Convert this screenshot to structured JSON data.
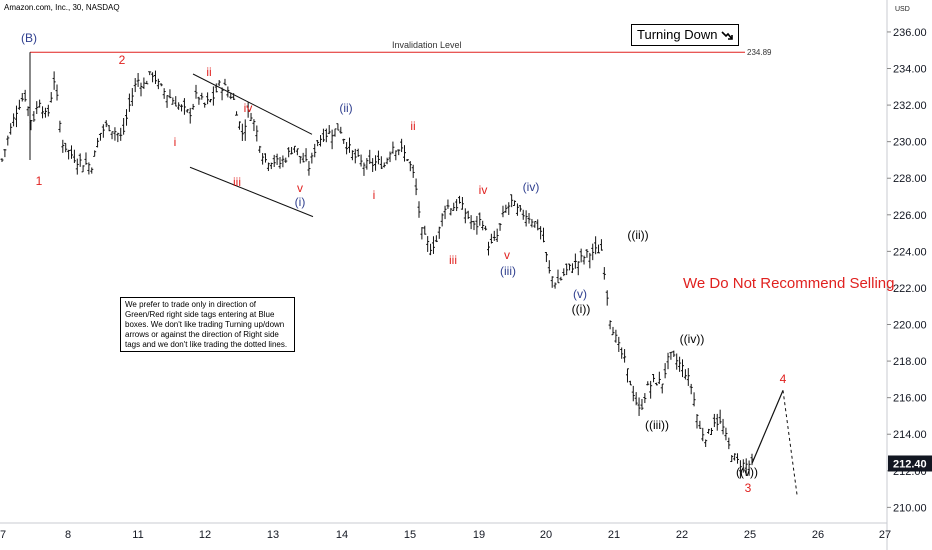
{
  "header": {
    "symbol": "Amazon.com, Inc., 30, NASDAQ",
    "currency": "USD"
  },
  "chart_data": {
    "type": "ohlc",
    "y_axis": {
      "range": [
        209.2,
        237.2
      ],
      "ticks": [
        "236.00",
        "234.00",
        "232.00",
        "230.00",
        "228.00",
        "226.00",
        "224.00",
        "222.00",
        "220.00",
        "218.00",
        "216.00",
        "214.00",
        "212.00",
        "210.00"
      ],
      "last_price": "212.40",
      "last_price_color": "#131722"
    },
    "x_axis": {
      "ticks": [
        "7",
        "8",
        "11",
        "12",
        "13",
        "14",
        "15",
        "19",
        "20",
        "21",
        "22",
        "25",
        "26",
        "27"
      ]
    },
    "invalidation_line": {
      "label": "Invalidation Level",
      "value": 234.89,
      "value_label": "234.89",
      "color": "#e0211f"
    },
    "wave_labels": [
      {
        "text": "(B)",
        "color": "#2f3f8f"
      },
      {
        "text": "1",
        "color": "#e0211f"
      },
      {
        "text": "2",
        "color": "#e0211f"
      },
      {
        "text": "i",
        "color": "#e0211f"
      },
      {
        "text": "ii",
        "color": "#e0211f"
      },
      {
        "text": "iii",
        "color": "#e0211f"
      },
      {
        "text": "iv",
        "color": "#e0211f"
      },
      {
        "text": "v",
        "color": "#e0211f"
      },
      {
        "text": "(i)",
        "color": "#2f3f8f"
      },
      {
        "text": "(ii)",
        "color": "#2f3f8f"
      },
      {
        "text": "i",
        "color": "#e0211f"
      },
      {
        "text": "ii",
        "color": "#e0211f"
      },
      {
        "text": "iii",
        "color": "#e0211f"
      },
      {
        "text": "iv",
        "color": "#e0211f"
      },
      {
        "text": "v",
        "color": "#e0211f"
      },
      {
        "text": "(iii)",
        "color": "#2f3f8f"
      },
      {
        "text": "(iv)",
        "color": "#2f3f8f"
      },
      {
        "text": "(v)",
        "color": "#2f3f8f"
      },
      {
        "text": "((i))",
        "color": "#000000"
      },
      {
        "text": "((ii))",
        "color": "#000000"
      },
      {
        "text": "((iii))",
        "color": "#000000"
      },
      {
        "text": "((iv))",
        "color": "#000000"
      },
      {
        "text": "((v))",
        "color": "#000000"
      },
      {
        "text": "3",
        "color": "#e0211f"
      },
      {
        "text": "4",
        "color": "#e0211f"
      }
    ],
    "price_path": [
      229.0,
      230.5,
      231.8,
      232.6,
      231.0,
      232.3,
      231.2,
      233.5,
      230.0,
      229.4,
      229.0,
      228.8,
      228.7,
      230.4,
      230.9,
      230.6,
      230.2,
      232.0,
      233.4,
      233.1,
      233.8,
      233.0,
      232.6,
      232.2,
      231.8,
      231.5,
      232.6,
      232.0,
      232.3,
      233.1,
      232.9,
      232.2,
      230.4,
      231.8,
      230.5,
      229.0,
      229.0,
      228.8,
      229.2,
      229.8,
      229.0,
      228.6,
      230.0,
      230.4,
      230.5,
      230.8,
      229.8,
      229.2,
      228.8,
      228.7,
      228.9,
      228.7,
      229.8,
      229.6,
      229.2,
      228.0,
      225.0,
      224.2,
      224.6,
      226.5,
      226.4,
      226.6,
      226.0,
      225.3,
      225.8,
      224.2,
      224.8,
      226.2,
      226.7,
      226.1,
      226.0,
      225.6,
      225.0,
      222.8,
      222.2,
      222.8,
      223.2,
      223.5,
      223.8,
      224.0,
      224.1,
      220.5,
      219.0,
      218.0,
      216.5,
      215.2,
      216.5,
      216.9,
      216.8,
      218.3,
      218.0,
      217.5,
      216.5,
      214.3,
      213.8,
      214.8,
      214.5,
      213.2,
      212.5,
      212.3,
      212.4
    ],
    "projection": {
      "from": 212.4,
      "to_wave4": 216.4,
      "dotted_to": 210.7
    },
    "annotations": {
      "turning": "Turning Down",
      "warning": "We Do Not Recommend Selling",
      "note": "We prefer to trade only in direction of Green/Red right side tags entering at Blue boxes. We don't like trading Turning up/down arrows or against the direction of Right side tags and we don't like trading the dotted lines."
    }
  }
}
